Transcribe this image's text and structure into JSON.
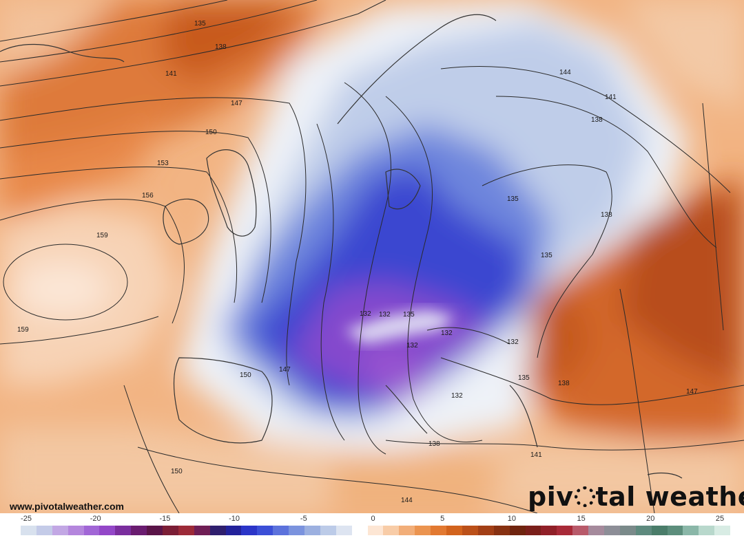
{
  "website": "www.pivotalweather.com",
  "brand": {
    "part1": "piv",
    "part2": "tal weather"
  },
  "contour_labels": [
    "135",
    "138",
    "141",
    "147",
    "150",
    "153",
    "156",
    "159",
    "159",
    "144",
    "141",
    "138",
    "135",
    "138",
    "135",
    "132",
    "135",
    "132",
    "132",
    "132",
    "135",
    "138",
    "147",
    "132",
    "138",
    "141",
    "144",
    "150",
    "150",
    "147",
    "132"
  ],
  "colorbar": {
    "ticks": [
      "-25",
      "-20",
      "-15",
      "-10",
      "-5",
      "0",
      "5",
      "10",
      "15",
      "20",
      "25"
    ],
    "colors": [
      "#d8e1ee",
      "#c4cbe8",
      "#c2a7e4",
      "#b486dd",
      "#a166d6",
      "#9347c8",
      "#7a2e9e",
      "#6a1c70",
      "#5a1448",
      "#7b1e36",
      "#9c2a38",
      "#6f1e55",
      "#2f1f6e",
      "#23229b",
      "#2b35c8",
      "#3b4fd7",
      "#5c72dc",
      "#7b93de",
      "#9cb0e0",
      "#bccbe8",
      "#dde4f1",
      "#ffffff",
      "#fde6d4",
      "#f8cca7",
      "#f2ae79",
      "#eb9450",
      "#e27931",
      "#d2631d",
      "#bb5019",
      "#a23f16",
      "#873112",
      "#6f240f",
      "#7a1f1a",
      "#902028",
      "#a82a38",
      "#b85a6a",
      "#a58a9c",
      "#8d8e97",
      "#7a8a8a",
      "#5e8a7e",
      "#4a7d6a",
      "#5c8e7c",
      "#8ab7a8",
      "#b8d8cc",
      "#d8ece4"
    ]
  }
}
